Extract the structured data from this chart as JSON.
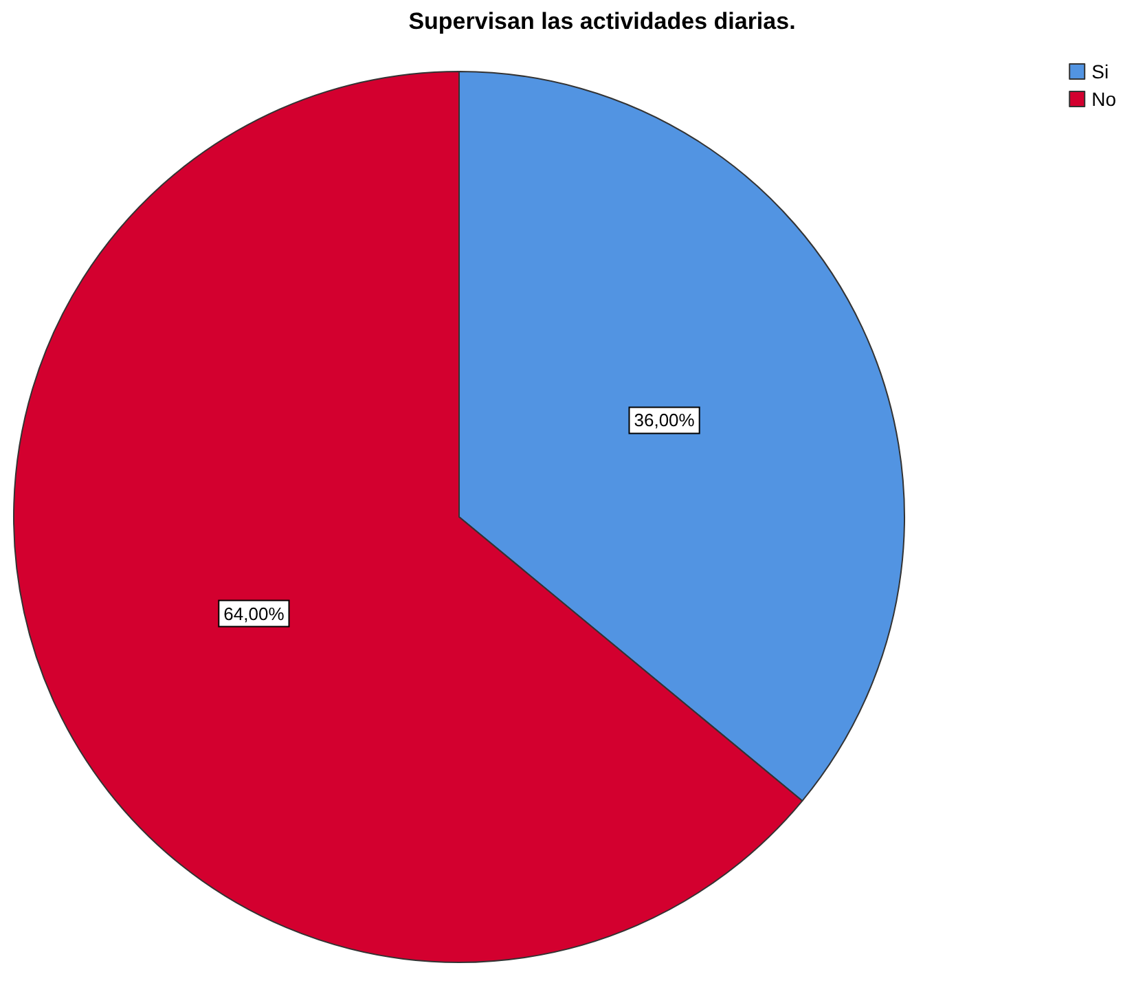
{
  "chart_data": {
    "type": "pie",
    "title": "Supervisan las actividades diarias.",
    "categories": [
      "Si",
      "No"
    ],
    "values": [
      36,
      64
    ],
    "colors": [
      "#5294e2",
      "#d3002f"
    ],
    "value_labels": [
      "36,00%",
      "64,00%"
    ],
    "legend": "top right"
  }
}
